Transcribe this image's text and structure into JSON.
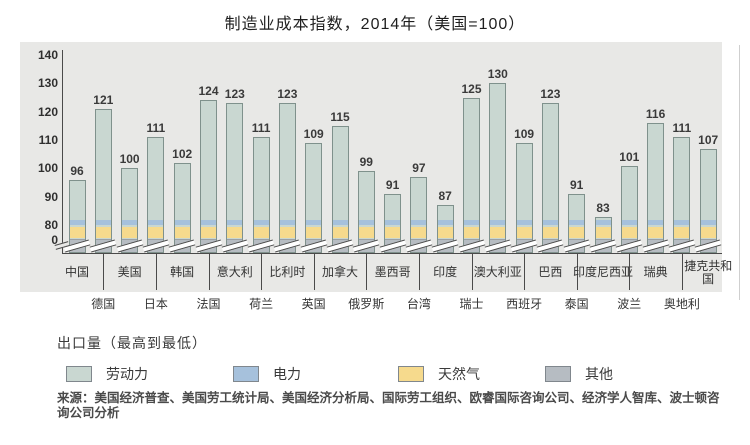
{
  "title": "制造业成本指数，2014年（美国=100）",
  "chart_data": {
    "type": "bar",
    "stacked": true,
    "title": "制造业成本指数，2014年（美国=100）",
    "yticks": [
      140,
      130,
      120,
      110,
      100,
      90,
      80,
      0
    ],
    "ylim": [
      0,
      140
    ],
    "axis_break": "y-axis compressed between 0 and 80, diagonal break marks across each bar",
    "grid": false,
    "legend_position": "bottom",
    "segments_bottom_to_top": [
      "其他",
      "天然气",
      "电力",
      "劳动力"
    ],
    "segment_colors": {
      "劳动力": "#c9d7d1",
      "电力": "#a6c1dc",
      "天然气": "#f6da8d",
      "其他": "#b6bcc2"
    },
    "bars": [
      {
        "label": "中国",
        "value": 96,
        "row": "top"
      },
      {
        "label": "德国",
        "value": 121,
        "row": "bottom"
      },
      {
        "label": "美国",
        "value": 100,
        "row": "top"
      },
      {
        "label": "日本",
        "value": 111,
        "row": "bottom"
      },
      {
        "label": "韩国",
        "value": 102,
        "row": "top"
      },
      {
        "label": "法国",
        "value": 124,
        "row": "bottom"
      },
      {
        "label": "意大利",
        "value": 123,
        "row": "top"
      },
      {
        "label": "荷兰",
        "value": 111,
        "row": "bottom"
      },
      {
        "label": "比利时",
        "value": 123,
        "row": "top"
      },
      {
        "label": "英国",
        "value": 109,
        "row": "bottom"
      },
      {
        "label": "加拿大",
        "value": 115,
        "row": "top"
      },
      {
        "label": "俄罗斯",
        "value": 99,
        "row": "bottom"
      },
      {
        "label": "墨西哥",
        "value": 91,
        "row": "top"
      },
      {
        "label": "台湾",
        "value": 97,
        "row": "bottom"
      },
      {
        "label": "印度",
        "value": 87,
        "row": "top"
      },
      {
        "label": "瑞士",
        "value": 125,
        "row": "bottom"
      },
      {
        "label": "澳大利亚",
        "value": 130,
        "row": "top"
      },
      {
        "label": "西班牙",
        "value": 109,
        "row": "bottom"
      },
      {
        "label": "巴西",
        "value": 123,
        "row": "top"
      },
      {
        "label": "泰国",
        "value": 91,
        "row": "bottom"
      },
      {
        "label": "印度尼西亚",
        "value": 83,
        "row": "top"
      },
      {
        "label": "波兰",
        "value": 101,
        "row": "bottom"
      },
      {
        "label": "瑞典",
        "value": 116,
        "row": "top"
      },
      {
        "label": "奥地利",
        "value": 111,
        "row": "bottom"
      },
      {
        "label": "捷克共和国",
        "value": 107,
        "row": "top",
        "wrap": true
      }
    ],
    "legend": [
      {
        "label": "劳动力",
        "color": "#c9d7d1"
      },
      {
        "label": "电力",
        "color": "#a6c1dc"
      },
      {
        "label": "天然气",
        "color": "#f6da8d"
      },
      {
        "label": "其他",
        "color": "#b6bcc2"
      }
    ]
  },
  "export_note": "出口量（最高到最低）",
  "source": "来源：美国经济普查、美国劳工统计局、美国经济分析局、国际劳工组织、欧睿国际咨询公司、经济学人智库、波士顿咨询公司分析"
}
